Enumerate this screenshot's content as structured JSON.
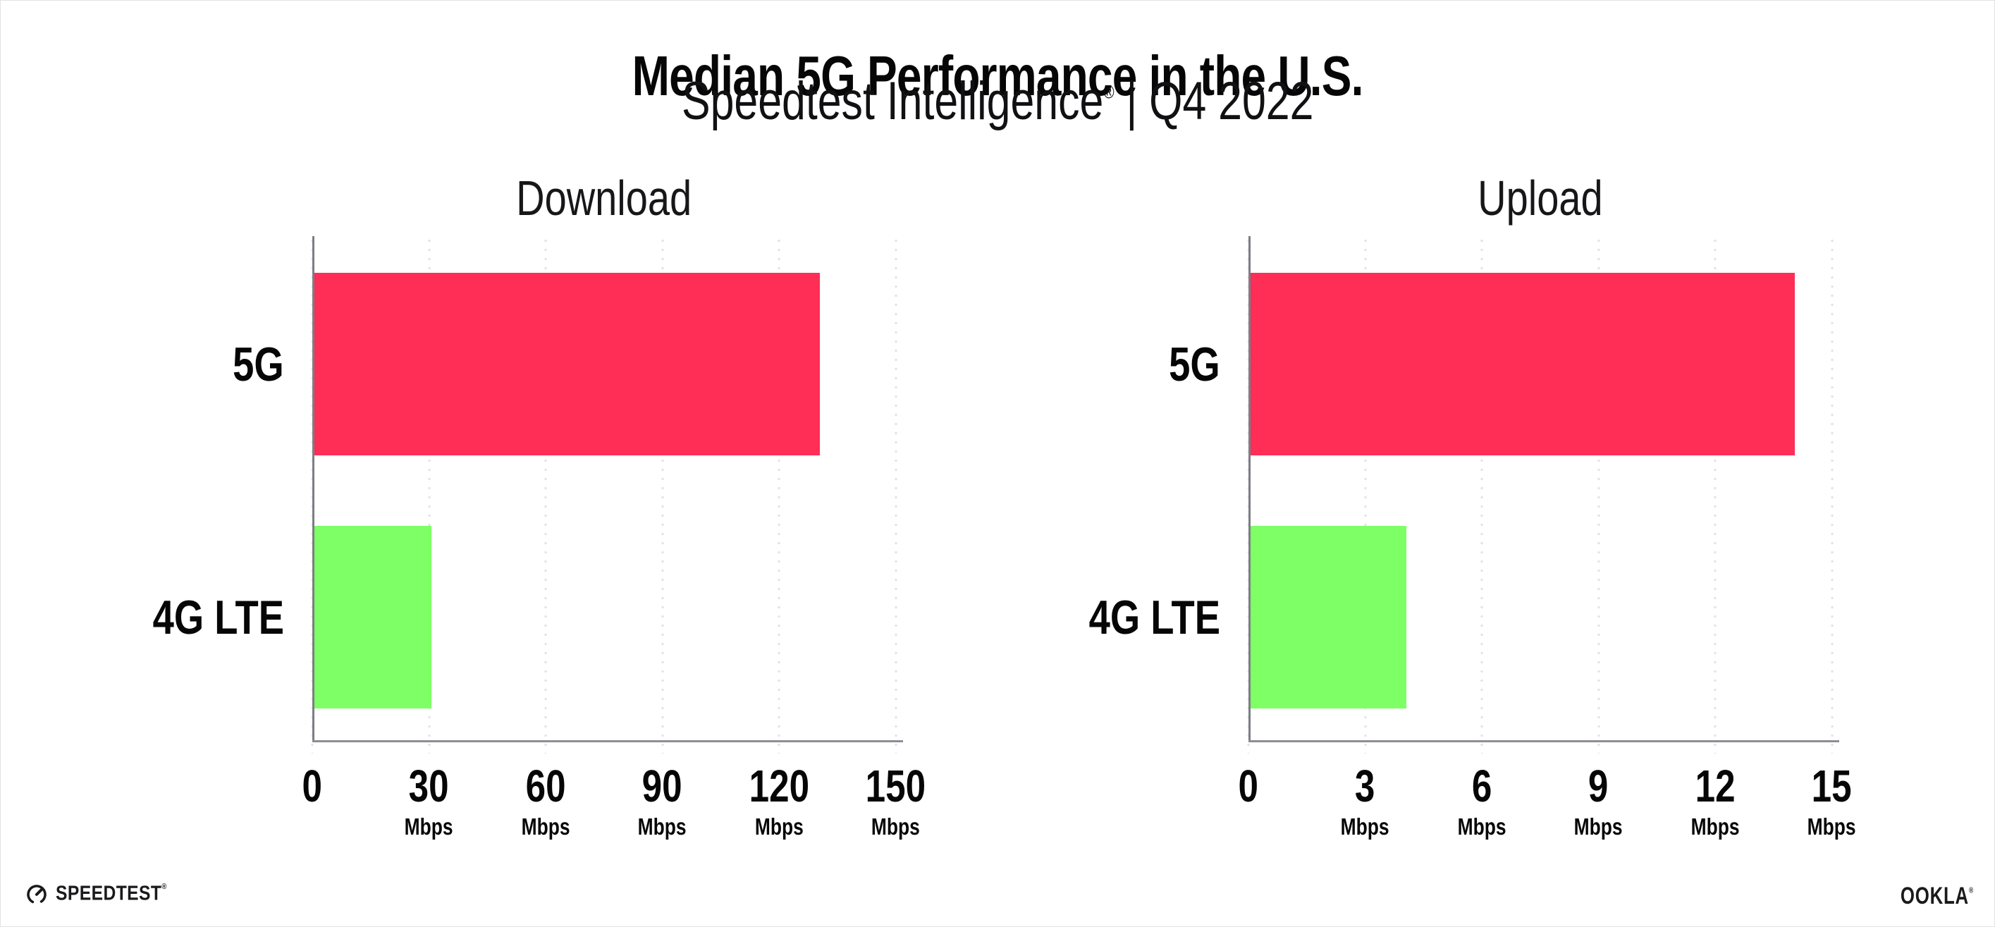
{
  "header": {
    "title": "Median 5G Performance in the U.S.",
    "subtitle_brand": "Speedtest Intelligence",
    "subtitle_reg": "®",
    "subtitle_rest": " | Q4 2022"
  },
  "footer": {
    "speedtest_logo_text": "SPEEDTEST",
    "speedtest_reg": "®",
    "ookla_logo_text": "OOKLA",
    "ookla_reg": "®"
  },
  "colors": {
    "bar_5g": "#FF2E56",
    "bar_4g_lte": "#7EFF66",
    "axis_line": "#8d8d94",
    "gridline_dots": "#e2e2ee",
    "text": "#060607"
  },
  "chart_data": [
    {
      "type": "bar",
      "orientation": "horizontal",
      "title": "Download",
      "categories": [
        "5G",
        "4G LTE"
      ],
      "values": [
        130,
        30
      ],
      "unit": "Mbps",
      "xlim": [
        0,
        150
      ],
      "xticks": [
        0,
        30,
        60,
        90,
        120,
        150
      ],
      "tick_unit_label": "Mbps",
      "bar_colors": [
        "#FF2E56",
        "#7EFF66"
      ],
      "grid": "vertical-dotted",
      "legend": "none"
    },
    {
      "type": "bar",
      "orientation": "horizontal",
      "title": "Upload",
      "categories": [
        "5G",
        "4G LTE"
      ],
      "values": [
        14,
        4
      ],
      "unit": "Mbps",
      "xlim": [
        0,
        15
      ],
      "xticks": [
        0,
        3,
        6,
        9,
        12,
        15
      ],
      "tick_unit_label": "Mbps",
      "bar_colors": [
        "#FF2E56",
        "#7EFF66"
      ],
      "grid": "vertical-dotted",
      "legend": "none"
    }
  ]
}
